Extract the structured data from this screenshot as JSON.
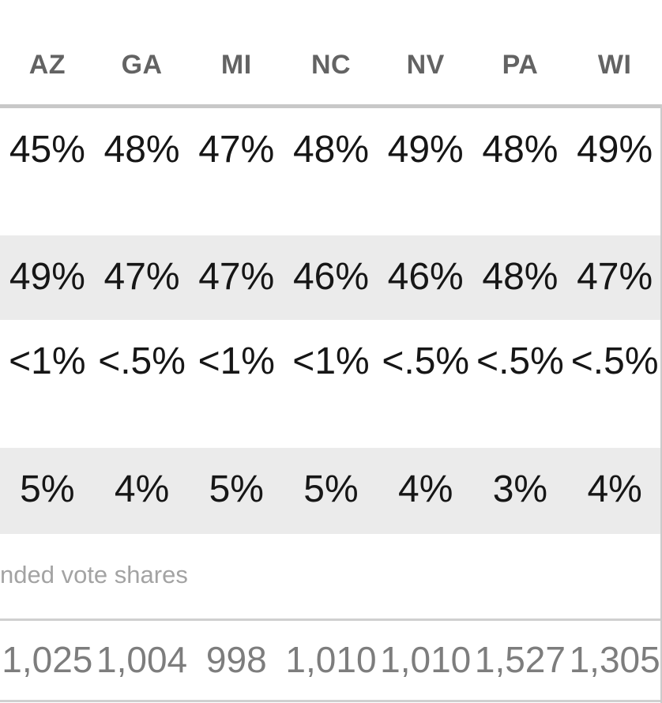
{
  "chart_data": {
    "type": "table",
    "title": "",
    "columns": [
      "AZ",
      "GA",
      "MI",
      "NC",
      "NV",
      "PA",
      "WI"
    ],
    "rows": [
      {
        "values": [
          "45%",
          "48%",
          "47%",
          "48%",
          "49%",
          "48%",
          "49%"
        ],
        "shaded": false
      },
      {
        "values": [
          "49%",
          "47%",
          "47%",
          "46%",
          "46%",
          "48%",
          "47%"
        ],
        "shaded": true
      },
      {
        "values": [
          "<1%",
          "<.5%",
          "<1%",
          "<1%",
          "<.5%",
          "<.5%",
          "<.5%"
        ],
        "shaded": false
      },
      {
        "values": [
          "5%",
          "4%",
          "5%",
          "5%",
          "4%",
          "3%",
          "4%"
        ],
        "shaded": true
      }
    ],
    "footnote": "nded vote shares",
    "sample_sizes": [
      "1,025",
      "1,004",
      "998",
      "1,010",
      "1,010",
      "1,527",
      "1,305"
    ],
    "layout_hints": {
      "row_labels_cropped_left": true,
      "alternating_row_shading": true,
      "columns_equal_width": true
    }
  },
  "colors": {
    "background": "#ffffff",
    "row_shade": "#ebebeb",
    "header_rule": "#c8c8c8",
    "thin_rule": "#d0d0d0",
    "data_text": "#161616",
    "header_text": "#636363",
    "footnote_text": "#a3a3a3",
    "sample_text": "#7d7d7d",
    "right_divider": "#cbcbcb"
  }
}
